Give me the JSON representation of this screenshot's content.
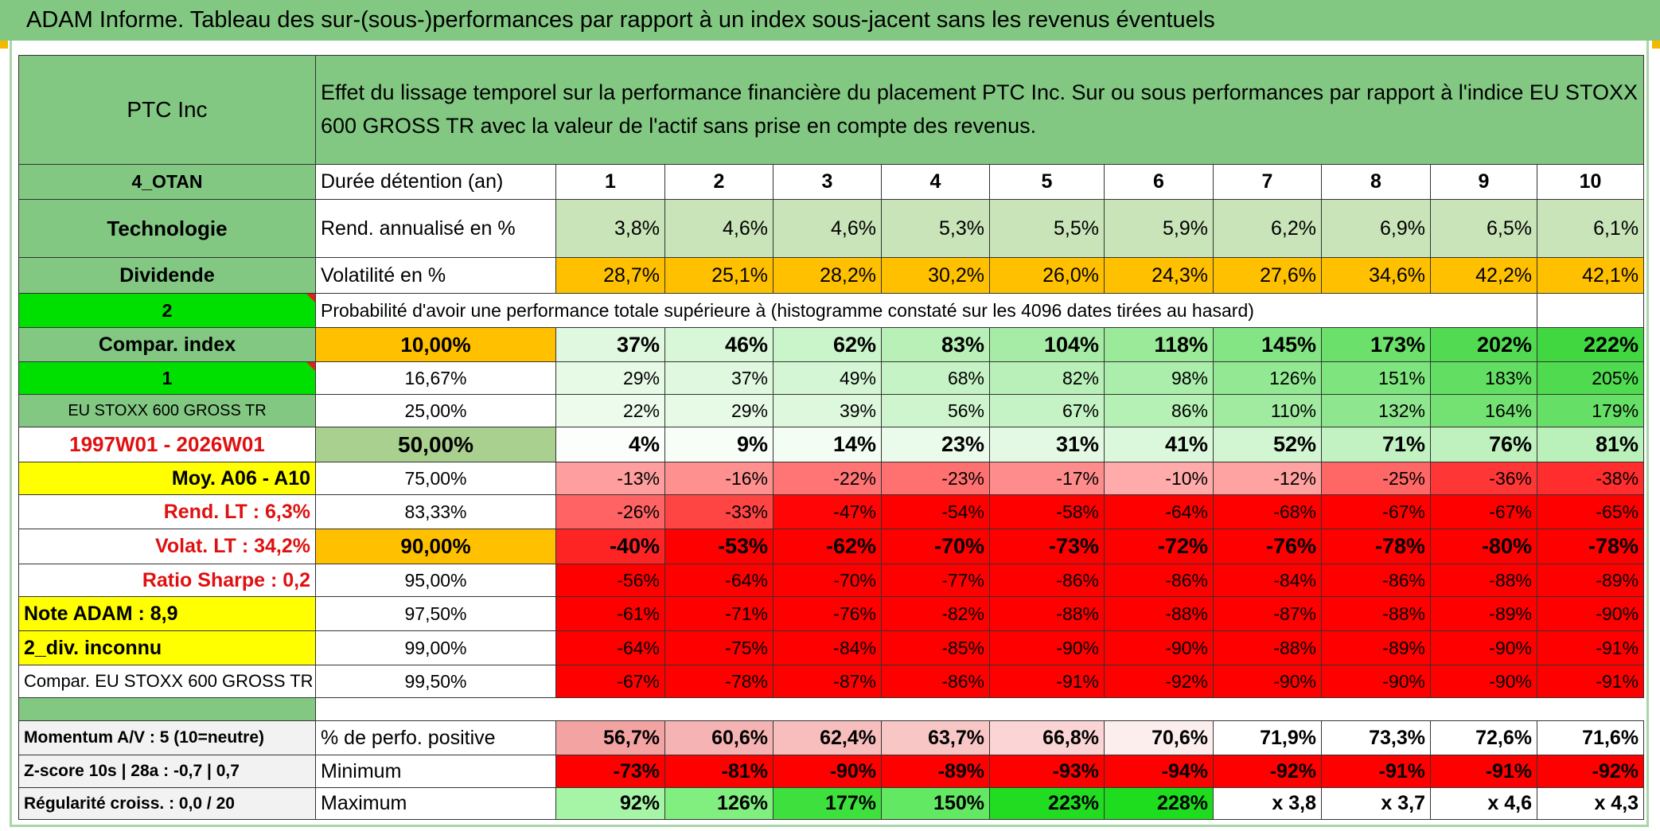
{
  "title": "ADAM Informe. Tableau des sur-(sous-)performances par rapport à un index sous-jacent sans les revenus éventuels",
  "header": {
    "company": "PTC Inc",
    "description": "Effet du lissage temporel sur la performance financière du placement PTC Inc. Sur ou sous performances par rapport à l'indice EU STOXX 600 GROSS TR avec la valeur de l'actif sans prise en compte des revenus."
  },
  "rows": [
    {
      "left": "4_OTAN",
      "label": "Durée détention (an)",
      "cells": [
        "1",
        "2",
        "3",
        "4",
        "5",
        "6",
        "7",
        "8",
        "9",
        "10"
      ]
    },
    {
      "left": "Technologie",
      "label": "Rend. annualisé en %",
      "cells": [
        "3,8%",
        "4,6%",
        "4,6%",
        "5,3%",
        "5,5%",
        "5,9%",
        "6,2%",
        "6,9%",
        "6,5%",
        "6,1%"
      ]
    },
    {
      "left": "Dividende",
      "label": "Volatilité en %",
      "cells": [
        "28,7%",
        "25,1%",
        "28,2%",
        "30,2%",
        "26,0%",
        "24,3%",
        "27,6%",
        "34,6%",
        "42,2%",
        "42,1%"
      ]
    },
    {
      "left": "2",
      "label": "Probabilité d'avoir une performance totale supérieure à (histogramme constaté sur les 4096 dates tirées au hasard)"
    },
    {
      "left": "Compar. index",
      "label": "10,00%",
      "cells": [
        "37%",
        "46%",
        "62%",
        "83%",
        "104%",
        "118%",
        "145%",
        "173%",
        "202%",
        "222%"
      ]
    },
    {
      "left": "1",
      "label": "16,67%",
      "cells": [
        "29%",
        "37%",
        "49%",
        "68%",
        "82%",
        "98%",
        "126%",
        "151%",
        "183%",
        "205%"
      ]
    },
    {
      "left": "EU STOXX 600 GROSS TR",
      "label": "25,00%",
      "cells": [
        "22%",
        "29%",
        "39%",
        "56%",
        "67%",
        "86%",
        "110%",
        "132%",
        "164%",
        "179%"
      ]
    },
    {
      "left": "1997W01 - 2026W01",
      "label": "50,00%",
      "cells": [
        "4%",
        "9%",
        "14%",
        "23%",
        "31%",
        "41%",
        "52%",
        "71%",
        "76%",
        "81%"
      ]
    },
    {
      "left": "Moy. A06 - A10",
      "label": "75,00%",
      "cells": [
        "-13%",
        "-16%",
        "-22%",
        "-23%",
        "-17%",
        "-10%",
        "-12%",
        "-25%",
        "-36%",
        "-38%"
      ]
    },
    {
      "left": "Rend. LT :   6,3%",
      "label": "83,33%",
      "cells": [
        "-26%",
        "-33%",
        "-47%",
        "-54%",
        "-58%",
        "-64%",
        "-68%",
        "-67%",
        "-67%",
        "-65%"
      ]
    },
    {
      "left": "Volat. LT :   34,2%",
      "label": "90,00%",
      "cells": [
        "-40%",
        "-53%",
        "-62%",
        "-70%",
        "-73%",
        "-72%",
        "-76%",
        "-78%",
        "-80%",
        "-78%"
      ]
    },
    {
      "left": "Ratio Sharpe :   0,2",
      "label": "95,00%",
      "cells": [
        "-56%",
        "-64%",
        "-70%",
        "-77%",
        "-86%",
        "-86%",
        "-84%",
        "-86%",
        "-88%",
        "-89%"
      ]
    },
    {
      "left": "Note ADAM : 8,9",
      "label": "97,50%",
      "cells": [
        "-61%",
        "-71%",
        "-76%",
        "-82%",
        "-88%",
        "-88%",
        "-87%",
        "-88%",
        "-89%",
        "-90%"
      ]
    },
    {
      "left": "2_div. inconnu",
      "label": "99,00%",
      "cells": [
        "-64%",
        "-75%",
        "-84%",
        "-85%",
        "-90%",
        "-90%",
        "-88%",
        "-89%",
        "-90%",
        "-91%"
      ]
    },
    {
      "left": "Compar. EU STOXX 600 GROSS TR",
      "label": "99,50%",
      "cells": [
        "-67%",
        "-78%",
        "-87%",
        "-86%",
        "-91%",
        "-92%",
        "-90%",
        "-90%",
        "-90%",
        "-91%"
      ]
    }
  ],
  "footer_rows": [
    {
      "left": "Momentum A/V : 5 (10=neutre)",
      "label": "% de perfo. positive",
      "cells": [
        "56,7%",
        "60,6%",
        "62,4%",
        "63,7%",
        "66,8%",
        "70,6%",
        "71,9%",
        "73,3%",
        "72,6%",
        "71,6%"
      ]
    },
    {
      "left": "Z-score 10s | 28a : -0,7 | 0,7",
      "label": "Minimum",
      "cells": [
        "-73%",
        "-81%",
        "-90%",
        "-89%",
        "-93%",
        "-94%",
        "-92%",
        "-91%",
        "-91%",
        "-92%"
      ]
    },
    {
      "left": "Régularité croiss. : 0,0 / 20",
      "label": "Maximum",
      "cells": [
        "92%",
        "126%",
        "177%",
        "150%",
        "223%",
        "228%",
        "x 3,8",
        "x 3,7",
        "x 4,6",
        "x 4,3"
      ]
    }
  ]
}
